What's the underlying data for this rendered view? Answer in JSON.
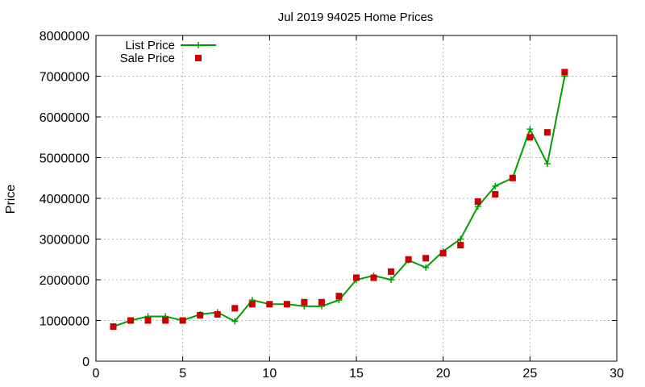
{
  "chart_data": {
    "type": "line",
    "title": "Jul 2019 94025 Home Prices",
    "xlabel": "",
    "ylabel": "Price",
    "xlim": [
      0,
      30
    ],
    "ylim": [
      0,
      8000000
    ],
    "xticks": [
      0,
      5,
      10,
      15,
      20,
      25,
      30
    ],
    "yticks": [
      0,
      1000000,
      2000000,
      3000000,
      4000000,
      5000000,
      6000000,
      7000000,
      8000000
    ],
    "xtick_labels": [
      "0",
      "5",
      "10",
      "15",
      "20",
      "25",
      "30"
    ],
    "ytick_labels": [
      "0",
      "1000000",
      "2000000",
      "3000000",
      "4000000",
      "5000000",
      "6000000",
      "7000000",
      "8000000"
    ],
    "grid": true,
    "legend_position": "top-left",
    "series": [
      {
        "name": "List Price",
        "style": "line-plus",
        "color": "#00a000",
        "x": [
          1,
          2,
          3,
          4,
          5,
          6,
          7,
          8,
          9,
          10,
          11,
          12,
          13,
          14,
          15,
          16,
          17,
          18,
          19,
          20,
          21,
          22,
          23,
          24,
          25,
          26,
          27
        ],
        "y": [
          850000,
          1000000,
          1100000,
          1100000,
          1000000,
          1150000,
          1200000,
          980000,
          1500000,
          1400000,
          1400000,
          1350000,
          1350000,
          1500000,
          2000000,
          2100000,
          2000000,
          2480000,
          2300000,
          2700000,
          3000000,
          3800000,
          4300000,
          4500000,
          5700000,
          4850000,
          7000000
        ]
      },
      {
        "name": "Sale Price",
        "style": "square",
        "color": "#cc0000",
        "x": [
          1,
          2,
          3,
          4,
          5,
          6,
          7,
          8,
          9,
          10,
          11,
          12,
          13,
          14,
          15,
          16,
          17,
          18,
          19,
          20,
          21,
          22,
          23,
          24,
          25,
          26,
          27
        ],
        "y": [
          850000,
          1000000,
          1000000,
          1000000,
          1000000,
          1130000,
          1150000,
          1300000,
          1400000,
          1400000,
          1400000,
          1450000,
          1450000,
          1600000,
          2050000,
          2050000,
          2200000,
          2500000,
          2530000,
          2650000,
          2850000,
          3920000,
          4100000,
          4500000,
          5500000,
          5620000,
          7100000
        ]
      }
    ]
  }
}
